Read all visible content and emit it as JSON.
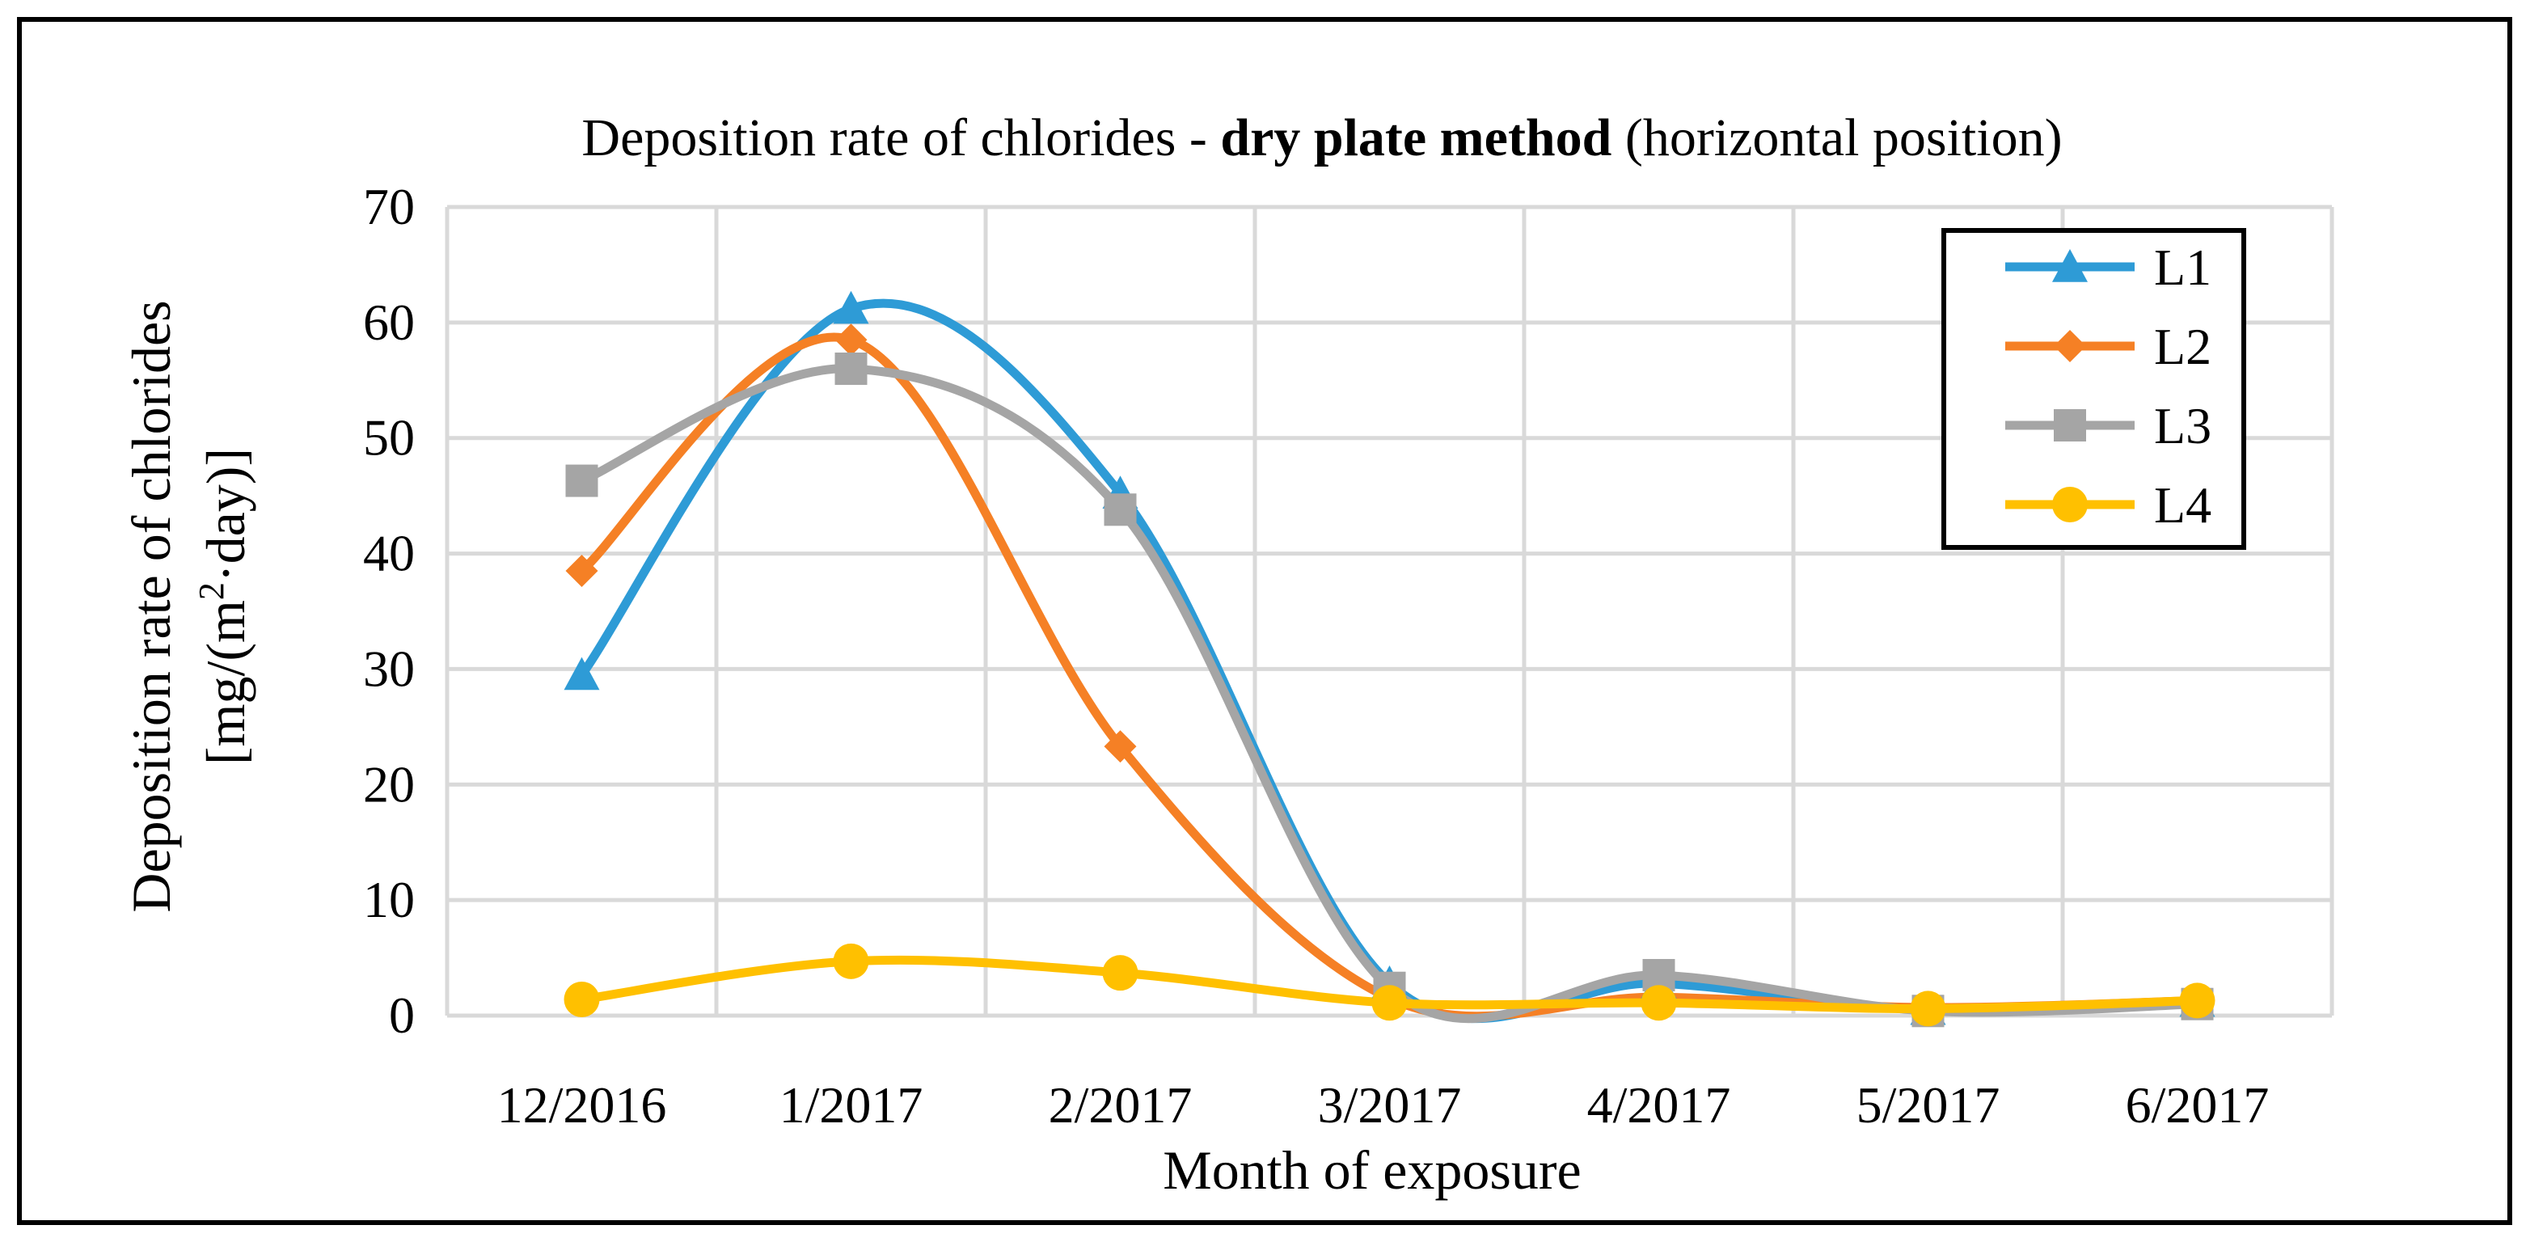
{
  "chart_data": {
    "type": "line",
    "title": {
      "prefix": "Deposition rate of chlorides - ",
      "bold": "dry plate method",
      "suffix": " (horizontal position)"
    },
    "xlabel": "Month of exposure",
    "ylabel": {
      "line1": "Deposition rate of chlorides",
      "line2_start": "[mg/(m",
      "line2_sup": "2",
      "line2_end": "·day)]"
    },
    "categories": [
      "12/2016",
      "1/2017",
      "2/2017",
      "3/2017",
      "4/2017",
      "5/2017",
      "6/2017"
    ],
    "ylim": [
      0,
      70
    ],
    "yticks": [
      0,
      10,
      20,
      30,
      40,
      50,
      60,
      70
    ],
    "grid": true,
    "legend_position": "top-right",
    "series": [
      {
        "name": "L1",
        "marker": "triangle",
        "color": "#2e9bd6",
        "values": [
          29.5,
          61.2,
          45.2,
          2.8,
          2.8,
          0.5,
          1.2
        ]
      },
      {
        "name": "L2",
        "marker": "diamond",
        "color": "#f58025",
        "values": [
          38.5,
          58.5,
          23.3,
          1.5,
          1.6,
          0.7,
          1.3
        ]
      },
      {
        "name": "L3",
        "marker": "square",
        "color": "#a5a5a5",
        "values": [
          46.3,
          56.0,
          43.8,
          2.4,
          3.5,
          0.4,
          1.0
        ]
      },
      {
        "name": "L4",
        "marker": "circle",
        "color": "#ffc000",
        "values": [
          1.4,
          4.7,
          3.7,
          1.1,
          1.1,
          0.6,
          1.3
        ]
      }
    ]
  }
}
